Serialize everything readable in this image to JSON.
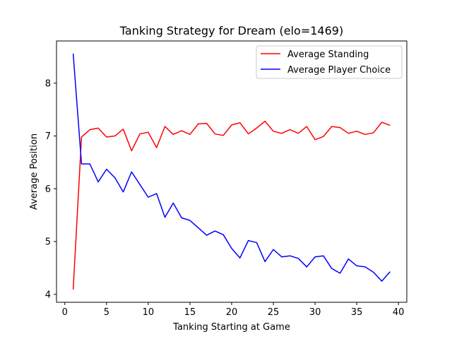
{
  "chart_data": {
    "type": "line",
    "title": "Tanking Strategy for Dream (elo=1469)",
    "xlabel": "Tanking Starting at Game",
    "ylabel": "Average Position",
    "xlim": [
      -1,
      41
    ],
    "ylim": [
      3.85,
      8.8
    ],
    "xticks": [
      0,
      5,
      10,
      15,
      20,
      25,
      30,
      35,
      40
    ],
    "yticks": [
      4,
      5,
      6,
      7,
      8
    ],
    "grid": false,
    "legend_position": "top-right",
    "x": [
      1,
      2,
      3,
      4,
      5,
      6,
      7,
      8,
      9,
      10,
      11,
      12,
      13,
      14,
      15,
      16,
      17,
      18,
      19,
      20,
      21,
      22,
      23,
      24,
      25,
      26,
      27,
      28,
      29,
      30,
      31,
      32,
      33,
      34,
      35,
      36,
      37,
      38,
      39
    ],
    "series": [
      {
        "name": "Average Standing",
        "color": "#ff0000",
        "values": [
          4.09,
          6.98,
          7.12,
          7.15,
          6.98,
          7.0,
          7.13,
          6.72,
          7.04,
          7.07,
          6.78,
          7.18,
          7.03,
          7.1,
          7.03,
          7.23,
          7.24,
          7.04,
          7.01,
          7.21,
          7.25,
          7.04,
          7.15,
          7.28,
          7.09,
          7.05,
          7.12,
          7.05,
          7.18,
          6.93,
          6.99,
          7.18,
          7.16,
          7.05,
          7.09,
          7.03,
          7.06,
          7.26,
          7.2
        ]
      },
      {
        "name": "Average Player Choice",
        "color": "#0000ff",
        "values": [
          8.56,
          6.47,
          6.47,
          6.13,
          6.37,
          6.21,
          5.94,
          6.32,
          6.08,
          5.84,
          5.91,
          5.46,
          5.73,
          5.45,
          5.4,
          5.26,
          5.12,
          5.2,
          5.13,
          4.87,
          4.69,
          5.02,
          4.98,
          4.62,
          4.85,
          4.71,
          4.73,
          4.68,
          4.52,
          4.71,
          4.73,
          4.49,
          4.4,
          4.67,
          4.54,
          4.52,
          4.42,
          4.25,
          4.43
        ]
      }
    ]
  }
}
